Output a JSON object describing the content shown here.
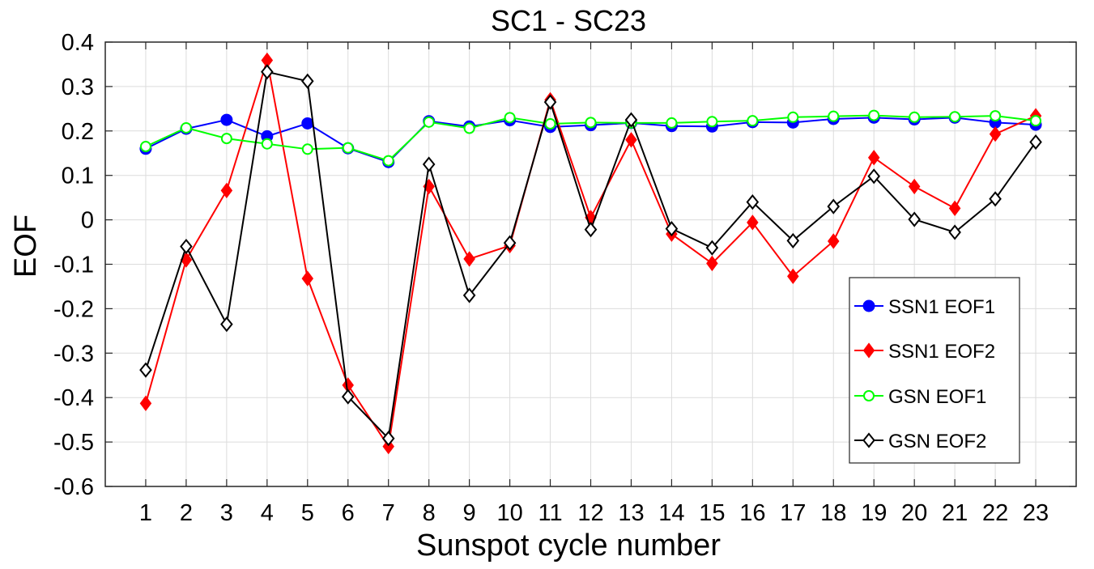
{
  "chart_data": {
    "type": "line",
    "title": "SC1 - SC23",
    "xlabel": "Sunspot cycle number",
    "ylabel": "EOF",
    "xlim": [
      0,
      24
    ],
    "ylim": [
      -0.6,
      0.4
    ],
    "grid": true,
    "legend_position": "right",
    "x": [
      1,
      2,
      3,
      4,
      5,
      6,
      7,
      8,
      9,
      10,
      11,
      12,
      13,
      14,
      15,
      16,
      17,
      18,
      19,
      20,
      21,
      22,
      23
    ],
    "x_ticks": [
      "1",
      "2",
      "3",
      "4",
      "5",
      "6",
      "7",
      "8",
      "9",
      "10",
      "11",
      "12",
      "13",
      "14",
      "15",
      "16",
      "17",
      "18",
      "19",
      "20",
      "21",
      "22",
      "23"
    ],
    "y_ticks": [
      {
        "value": 0.4,
        "label": "0.4"
      },
      {
        "value": 0.3,
        "label": "0.3"
      },
      {
        "value": 0.2,
        "label": "0.2"
      },
      {
        "value": 0.1,
        "label": "0.1"
      },
      {
        "value": 0,
        "label": "0"
      },
      {
        "value": -0.1,
        "label": "-0.1"
      },
      {
        "value": -0.2,
        "label": "-0.2"
      },
      {
        "value": -0.3,
        "label": "-0.3"
      },
      {
        "value": -0.4,
        "label": "-0.4"
      },
      {
        "value": -0.5,
        "label": "-0.5"
      },
      {
        "value": -0.6,
        "label": "-0.6"
      }
    ],
    "series": [
      {
        "name": "SSN1 EOF1",
        "color": "#0000ff",
        "marker": "filled-circle",
        "values": [
          0.16,
          0.205,
          0.225,
          0.188,
          0.217,
          0.161,
          0.13,
          0.222,
          0.21,
          0.224,
          0.209,
          0.213,
          0.218,
          0.211,
          0.21,
          0.22,
          0.219,
          0.227,
          0.23,
          0.226,
          0.23,
          0.219,
          0.214
        ]
      },
      {
        "name": "SSN1 EOF2",
        "color": "#ff0000",
        "marker": "filled-diamond",
        "values": [
          -0.413,
          -0.09,
          0.066,
          0.359,
          -0.132,
          -0.372,
          -0.51,
          0.075,
          -0.088,
          -0.058,
          0.27,
          0.005,
          0.18,
          -0.032,
          -0.098,
          -0.006,
          -0.127,
          -0.048,
          0.14,
          0.075,
          0.026,
          0.193,
          0.234
        ]
      },
      {
        "name": "GSN EOF1",
        "color": "#00ff00",
        "marker": "open-circle",
        "values": [
          0.165,
          0.207,
          0.183,
          0.171,
          0.159,
          0.162,
          0.133,
          0.22,
          0.206,
          0.23,
          0.216,
          0.219,
          0.218,
          0.218,
          0.221,
          0.223,
          0.231,
          0.233,
          0.235,
          0.231,
          0.232,
          0.234,
          0.223
        ]
      },
      {
        "name": "GSN EOF2",
        "color": "#000000",
        "marker": "open-diamond",
        "values": [
          -0.338,
          -0.06,
          -0.235,
          0.333,
          0.312,
          -0.398,
          -0.492,
          0.125,
          -0.17,
          -0.052,
          0.265,
          -0.022,
          0.225,
          -0.02,
          -0.063,
          0.04,
          -0.047,
          0.03,
          0.098,
          0.001,
          -0.028,
          0.047,
          0.175
        ]
      }
    ]
  }
}
